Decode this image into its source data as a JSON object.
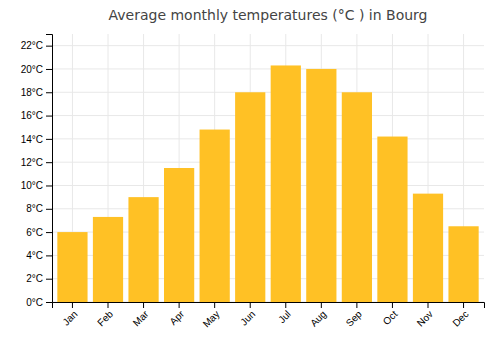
{
  "chart_data": {
    "type": "bar",
    "title": "Average monthly temperatures (°C ) in Bourg",
    "categories": [
      "Jan",
      "Feb",
      "Mar",
      "Apr",
      "May",
      "Jun",
      "Jul",
      "Aug",
      "Sep",
      "Oct",
      "Nov",
      "Dec"
    ],
    "values": [
      6.0,
      7.3,
      9.0,
      11.5,
      14.8,
      18.0,
      20.3,
      20.0,
      18.0,
      14.2,
      9.3,
      6.5
    ],
    "color": "#FFC125",
    "ylim": [
      0,
      23
    ],
    "yticks": [
      {
        "value": 0,
        "label": "0°C"
      },
      {
        "value": 2,
        "label": "2°C"
      },
      {
        "value": 4,
        "label": "4°C"
      },
      {
        "value": 6,
        "label": "6°C"
      },
      {
        "value": 8,
        "label": "8°C"
      },
      {
        "value": 10,
        "label": "10°C"
      },
      {
        "value": 12,
        "label": "12°C"
      },
      {
        "value": 14,
        "label": "14°C"
      },
      {
        "value": 16,
        "label": "16°C"
      },
      {
        "value": 18,
        "label": "18°C"
      },
      {
        "value": 20,
        "label": "20°C"
      },
      {
        "value": 22,
        "label": "22°C"
      }
    ],
    "grid": true
  }
}
